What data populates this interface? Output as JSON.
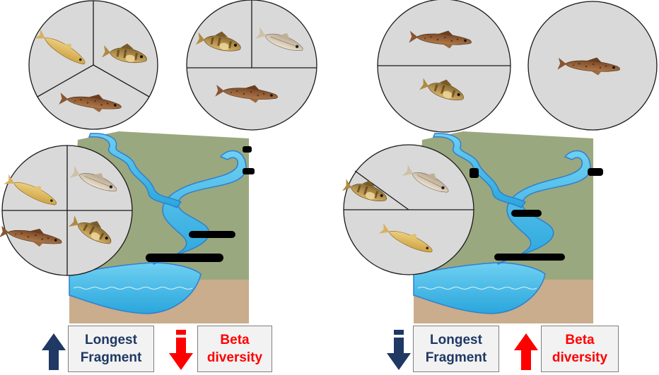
{
  "colors": {
    "land": "#9aa87f",
    "river": "#5bc8ee",
    "river_outline": "#2f7fd0",
    "soil": "#c9ad8c",
    "circle_fill": "#d9d9d9",
    "circle_line": "#1a1a1a",
    "barrier": "#000000",
    "increase_navy": "#1f3864",
    "decrease_red": "#ff0000"
  },
  "fish_species": [
    "golden-minnow",
    "darter",
    "pale-shiner",
    "spotted-brown-fish"
  ],
  "left_scenario": {
    "label_fragment": [
      "Longest",
      "Fragment"
    ],
    "label_beta": [
      "Beta",
      "diversity"
    ],
    "fragment_arrow": "up",
    "beta_arrow": "down"
  },
  "right_scenario": {
    "label_fragment": [
      "Longest",
      "Fragment"
    ],
    "label_beta": [
      "Beta",
      "diversity"
    ],
    "fragment_arrow": "down",
    "beta_arrow": "up"
  }
}
